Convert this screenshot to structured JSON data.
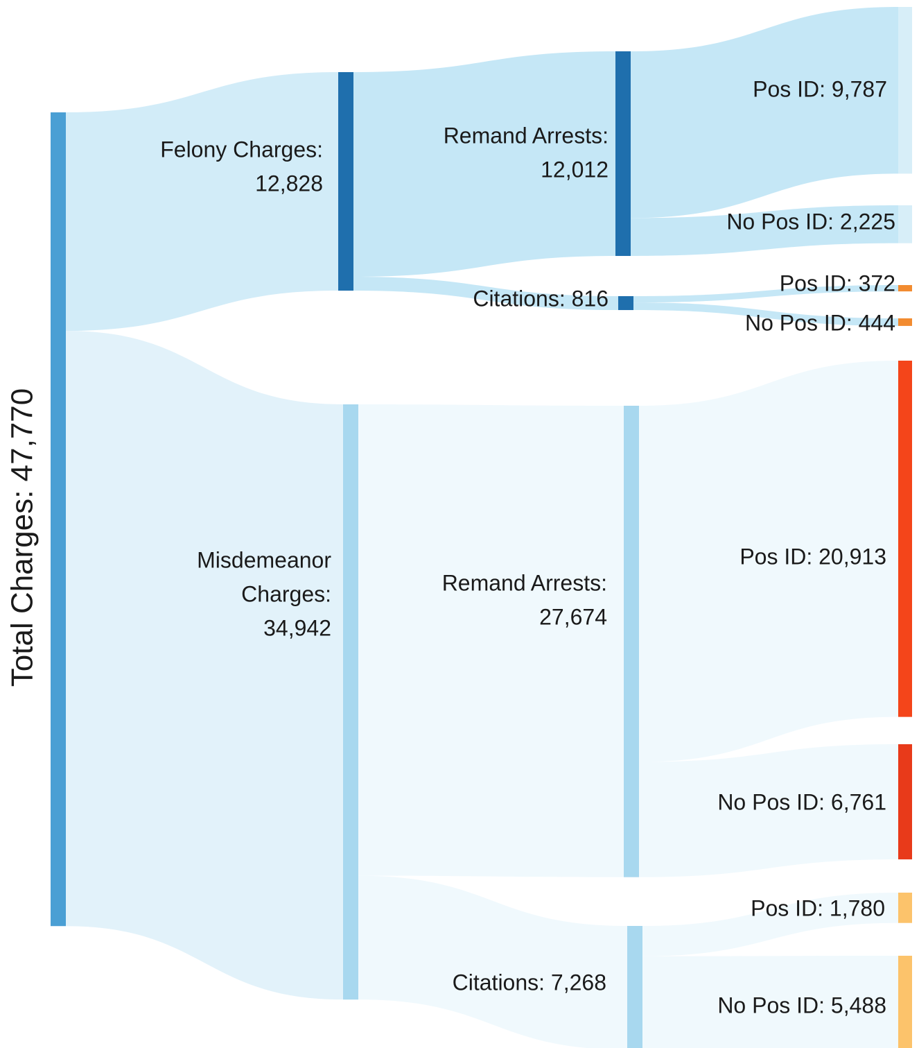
{
  "chart_data": {
    "type": "sankey",
    "nodes": [
      {
        "label": [
          "Total Charges: 47,770"
        ],
        "value": 47770,
        "color": "#4a9fd4"
      },
      {
        "label": [
          "Felony Charges:",
          "12,828"
        ],
        "value": 12828,
        "color": "#1f6fad"
      },
      {
        "label": [
          "Misdemeanor",
          "Charges:",
          "34,942"
        ],
        "value": 34942,
        "color": "#a8d8ef"
      },
      {
        "label": [
          "Remand Arrests:",
          "12,012"
        ],
        "value": 12012,
        "color": "#1f6fad"
      },
      {
        "label": [
          "Citations: 816"
        ],
        "value": 816,
        "color": "#1f6fad"
      },
      {
        "label": [
          "Remand Arrests:",
          "27,674"
        ],
        "value": 27674,
        "color": "#a8d8ef"
      },
      {
        "label": [
          "Citations: 7,268"
        ],
        "value": 7268,
        "color": "#a8d8ef"
      },
      {
        "label": [
          "Pos ID: 9,787"
        ],
        "value": 9787,
        "color": "#d7eef8"
      },
      {
        "label": [
          "No Pos ID: 2,225"
        ],
        "value": 2225,
        "color": "#d7eef8"
      },
      {
        "label": [
          "Pos ID: 372"
        ],
        "value": 372,
        "color": "#f28b30"
      },
      {
        "label": [
          "No Pos ID: 444"
        ],
        "value": 444,
        "color": "#f28b30"
      },
      {
        "label": [
          "Pos ID: 20,913"
        ],
        "value": 20913,
        "color": "#f4451a"
      },
      {
        "label": [
          "No Pos ID: 6,761"
        ],
        "value": 6761,
        "color": "#e83a1a"
      },
      {
        "label": [
          "Pos ID: 1,780"
        ],
        "value": 1780,
        "color": "#fcc36b"
      },
      {
        "label": [
          "No Pos ID: 5,488"
        ],
        "value": 5488,
        "color": "#fcc36b"
      }
    ],
    "links": [
      {
        "source": 0,
        "target": 1,
        "value": 12828,
        "color": "#cdeaf7"
      },
      {
        "source": 0,
        "target": 2,
        "value": 34942,
        "color": "#dff1fa"
      },
      {
        "source": 1,
        "target": 3,
        "value": 12012,
        "color": "#bfe4f5"
      },
      {
        "source": 1,
        "target": 4,
        "value": 816,
        "color": "#bfe4f5"
      },
      {
        "source": 2,
        "target": 5,
        "value": 27674,
        "color": "#eef8fd"
      },
      {
        "source": 2,
        "target": 6,
        "value": 7268,
        "color": "#eef8fd"
      },
      {
        "source": 3,
        "target": 7,
        "value": 9787,
        "color": "#bfe4f5"
      },
      {
        "source": 3,
        "target": 8,
        "value": 2225,
        "color": "#bfe4f5"
      },
      {
        "source": 4,
        "target": 9,
        "value": 372,
        "color": "#bfe4f5"
      },
      {
        "source": 4,
        "target": 10,
        "value": 444,
        "color": "#bfe4f5"
      },
      {
        "source": 5,
        "target": 11,
        "value": 20913,
        "color": "#eef8fd"
      },
      {
        "source": 5,
        "target": 12,
        "value": 6761,
        "color": "#eef8fd"
      },
      {
        "source": 6,
        "target": 13,
        "value": 1780,
        "color": "#eef8fd"
      },
      {
        "source": 6,
        "target": 14,
        "value": 5488,
        "color": "#eef8fd"
      }
    ]
  }
}
